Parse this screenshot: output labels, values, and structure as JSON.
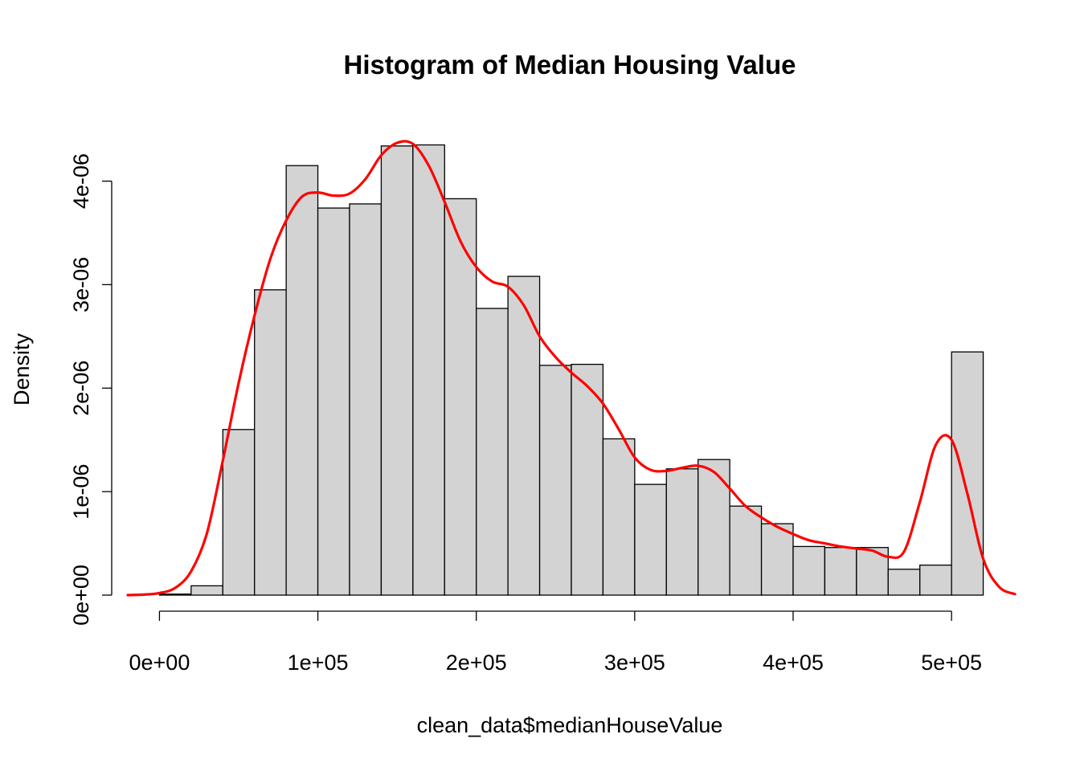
{
  "chart_data": {
    "type": "bar",
    "title": "Histogram of Median Housing Value",
    "xlabel": "clean_data$medianHouseValue",
    "ylabel": "Density",
    "xlim": [
      -20000,
      540000
    ],
    "ylim": [
      0,
      4.4e-06
    ],
    "grid": false,
    "bins": {
      "width": 20000,
      "starts": [
        0,
        20000,
        40000,
        60000,
        80000,
        100000,
        120000,
        140000,
        160000,
        180000,
        200000,
        220000,
        240000,
        260000,
        280000,
        300000,
        320000,
        340000,
        360000,
        380000,
        400000,
        420000,
        440000,
        460000,
        480000,
        500000
      ],
      "values": [
        1e-08,
        9e-08,
        1.6e-06,
        2.95e-06,
        4.15e-06,
        3.74e-06,
        3.78e-06,
        4.34e-06,
        4.35e-06,
        3.83e-06,
        2.77e-06,
        3.08e-06,
        2.22e-06,
        2.23e-06,
        1.51e-06,
        1.07e-06,
        1.22e-06,
        1.31e-06,
        8.6e-07,
        6.9e-07,
        4.7e-07,
        4.6e-07,
        4.6e-07,
        2.5e-07,
        2.9e-07,
        2.35e-06
      ]
    },
    "x_ticks": [
      {
        "value": 0,
        "label": "0e+00"
      },
      {
        "value": 100000,
        "label": "1e+05"
      },
      {
        "value": 200000,
        "label": "2e+05"
      },
      {
        "value": 300000,
        "label": "3e+05"
      },
      {
        "value": 400000,
        "label": "4e+05"
      },
      {
        "value": 500000,
        "label": "5e+05"
      }
    ],
    "y_ticks": [
      {
        "value": 0,
        "label": "0e+00"
      },
      {
        "value": 1e-06,
        "label": "1e-06"
      },
      {
        "value": 2e-06,
        "label": "2e-06"
      },
      {
        "value": 3e-06,
        "label": "3e-06"
      },
      {
        "value": 4e-06,
        "label": "4e-06"
      }
    ],
    "density_curve": {
      "color": "#ff0000",
      "x": [
        -20000,
        -10000,
        0,
        10000,
        20000,
        30000,
        40000,
        50000,
        60000,
        70000,
        80000,
        90000,
        100000,
        110000,
        120000,
        130000,
        140000,
        150000,
        160000,
        170000,
        180000,
        190000,
        200000,
        210000,
        220000,
        230000,
        240000,
        250000,
        260000,
        270000,
        280000,
        290000,
        300000,
        310000,
        320000,
        330000,
        340000,
        350000,
        360000,
        370000,
        380000,
        390000,
        400000,
        410000,
        420000,
        430000,
        440000,
        450000,
        460000,
        470000,
        480000,
        490000,
        500000,
        510000,
        520000,
        530000,
        540000
      ],
      "y": [
        0.0,
        5e-09,
        2e-08,
        7e-08,
        2.3e-07,
        6e-07,
        1.3e-06,
        2.05e-06,
        2.7e-06,
        3.25e-06,
        3.62e-06,
        3.85e-06,
        3.89e-06,
        3.86e-06,
        3.88e-06,
        4.02e-06,
        4.25e-06,
        4.37e-06,
        4.36e-06,
        4.15e-06,
        3.8e-06,
        3.42e-06,
        3.17e-06,
        3.03e-06,
        2.98e-06,
        2.8e-06,
        2.5e-06,
        2.3e-06,
        2.15e-06,
        2.02e-06,
        1.85e-06,
        1.6e-06,
        1.33e-06,
        1.21e-06,
        1.2e-06,
        1.23e-06,
        1.25e-06,
        1.19e-06,
        1.03e-06,
        8.6e-07,
        7.5e-07,
        6.6e-07,
        5.9e-07,
        5.3e-07,
        5e-07,
        4.7e-07,
        4.5e-07,
        4.3e-07,
        3.7e-07,
        4.2e-07,
        9e-07,
        1.45e-06,
        1.5e-06,
        9.8e-07,
        3.5e-07,
        8e-08,
        1e-08
      ]
    }
  }
}
